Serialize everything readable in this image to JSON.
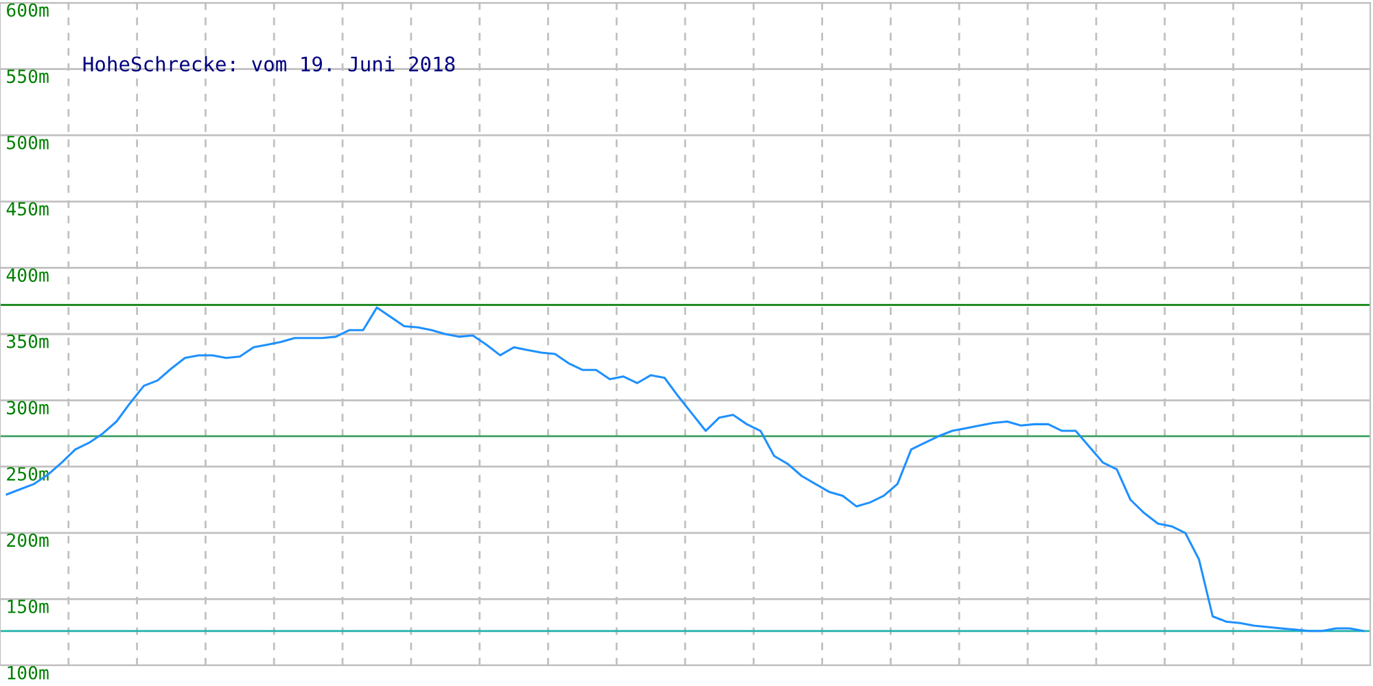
{
  "chart_data": {
    "type": "line",
    "title": "HoheSchrecke: vom 19. Juni 2018",
    "categories": [
      null,
      null,
      null,
      null,
      null,
      null,
      null,
      null,
      null,
      null,
      null,
      null,
      null,
      null,
      null,
      null,
      null,
      null,
      null,
      null,
      null,
      null,
      null,
      null,
      null,
      null,
      null,
      null,
      null,
      null,
      null,
      null,
      null,
      null,
      null,
      null,
      null,
      null,
      null,
      null,
      null,
      null,
      null,
      null,
      null,
      null,
      null,
      null,
      null,
      null,
      null,
      null,
      null,
      null,
      null,
      null,
      null,
      null,
      null,
      null,
      null,
      null,
      null,
      null,
      null,
      null,
      null,
      null,
      null,
      null,
      null,
      null,
      null,
      null,
      null,
      null,
      null,
      null,
      null,
      null,
      null,
      null,
      null,
      null,
      null,
      null,
      null,
      null,
      null,
      null,
      null,
      null,
      null,
      null,
      null,
      null,
      null,
      null,
      null,
      null
    ],
    "series": [
      {
        "color": "#1e90ff",
        "values": [
          229,
          233,
          237,
          244,
          253,
          263,
          268,
          275,
          284,
          298,
          311,
          315,
          324,
          332,
          334,
          334,
          332,
          333,
          340,
          342,
          344,
          347,
          347,
          347,
          348,
          353,
          353,
          370,
          363,
          356,
          355,
          353,
          350,
          348,
          349,
          342,
          334,
          340,
          338,
          336,
          335,
          328,
          323,
          323,
          316,
          318,
          313,
          319,
          317,
          303,
          290,
          277,
          287,
          289,
          282,
          277,
          258,
          252,
          243,
          237,
          231,
          228,
          220,
          223,
          228,
          237,
          263,
          268,
          273,
          277,
          279,
          281,
          283,
          284,
          281,
          282,
          282,
          277,
          277,
          265,
          253,
          248,
          225,
          215,
          207,
          205,
          200,
          180,
          137,
          133,
          132,
          130,
          129,
          128,
          127,
          126,
          126,
          128,
          128,
          126
        ]
      }
    ],
    "ylim": [
      100,
      600
    ],
    "yticks": [
      {
        "value": 100,
        "label": "100m"
      },
      {
        "value": 150,
        "label": "150m"
      },
      {
        "value": 200,
        "label": "200m"
      },
      {
        "value": 250,
        "label": "250m"
      },
      {
        "value": 300,
        "label": "300m"
      },
      {
        "value": 350,
        "label": "350m"
      },
      {
        "value": 400,
        "label": "400m"
      },
      {
        "value": 450,
        "label": "450m"
      },
      {
        "value": 500,
        "label": "500m"
      },
      {
        "value": 550,
        "label": "550m"
      },
      {
        "value": 600,
        "label": "600m"
      }
    ],
    "tick_labels": "y",
    "grid": true,
    "ref_lines": [
      {
        "axis": "y",
        "value": 372,
        "color": "#228b22"
      },
      {
        "axis": "y",
        "value": 273,
        "color": "#3ca060"
      },
      {
        "axis": "y",
        "value": 126,
        "color": "#20b2aa"
      }
    ]
  }
}
